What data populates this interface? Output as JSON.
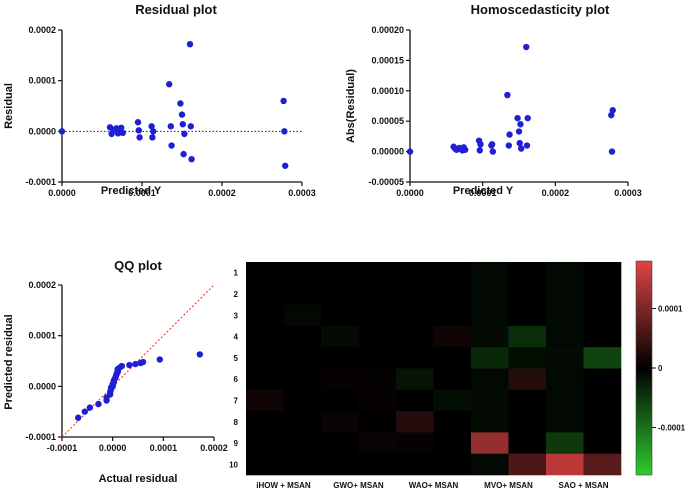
{
  "chart_data": [
    {
      "type": "scatter",
      "title": "Residual plot",
      "xlabel": "Predicted Y",
      "ylabel": "Residual",
      "xlim": [
        0,
        0.0003
      ],
      "ylim": [
        -0.0001,
        0.0002
      ],
      "xticks": [
        "0.0000",
        "0.0001",
        "0.0002",
        "0.0003"
      ],
      "yticks": [
        "-0.0001",
        "0.0000",
        "0.0001",
        "0.0002"
      ],
      "reference_line": "y = 0 (dotted)",
      "color": "#1f1fd6",
      "points": [
        [
          0.0,
          0.0
        ],
        [
          6e-05,
          8e-06
        ],
        [
          6.2e-05,
          -5e-06
        ],
        [
          6.4e-05,
          3e-06
        ],
        [
          6.8e-05,
          6e-06
        ],
        [
          7e-05,
          -4e-06
        ],
        [
          7.2e-05,
          2e-06
        ],
        [
          7.4e-05,
          7e-06
        ],
        [
          7.6e-05,
          -3e-06
        ],
        [
          9.5e-05,
          1.8e-05
        ],
        [
          9.6e-05,
          2e-06
        ],
        [
          9.7e-05,
          -1.2e-05
        ],
        [
          0.000112,
          1e-05
        ],
        [
          0.000113,
          -1.2e-05
        ],
        [
          0.000114,
          0.0
        ],
        [
          0.000134,
          9.3e-05
        ],
        [
          0.000136,
          1e-05
        ],
        [
          0.000137,
          -2.8e-05
        ],
        [
          0.000148,
          5.5e-05
        ],
        [
          0.00015,
          3.3e-05
        ],
        [
          0.000151,
          1.4e-05
        ],
        [
          0.000152,
          -4.5e-05
        ],
        [
          0.000153,
          -5e-06
        ],
        [
          0.00016,
          0.000172
        ],
        [
          0.000161,
          1e-05
        ],
        [
          0.000162,
          -5.5e-05
        ],
        [
          0.000277,
          6e-05
        ],
        [
          0.000278,
          0.0
        ],
        [
          0.000279,
          -6.8e-05
        ]
      ]
    },
    {
      "type": "scatter",
      "title": "Homoscedasticity plot",
      "xlabel": "Predicted Y",
      "ylabel": "Abs(Residual)",
      "xlim": [
        0,
        0.0003
      ],
      "ylim": [
        -5e-05,
        0.0002
      ],
      "xticks": [
        "0.0000",
        "0.0001",
        "0.0002",
        "0.0003"
      ],
      "yticks": [
        "-0.00005",
        "0.00000",
        "0.00005",
        "0.00010",
        "0.00015",
        "0.00020"
      ],
      "color": "#1f1fd6",
      "points": [
        [
          0.0,
          0.0
        ],
        [
          6e-05,
          8e-06
        ],
        [
          6.2e-05,
          5e-06
        ],
        [
          6.4e-05,
          3e-06
        ],
        [
          6.8e-05,
          6e-06
        ],
        [
          7e-05,
          4e-06
        ],
        [
          7.2e-05,
          2e-06
        ],
        [
          7.4e-05,
          7e-06
        ],
        [
          7.6e-05,
          3e-06
        ],
        [
          9.5e-05,
          1.8e-05
        ],
        [
          9.6e-05,
          2e-06
        ],
        [
          9.7e-05,
          1.2e-05
        ],
        [
          0.000112,
          1e-05
        ],
        [
          0.000113,
          1.2e-05
        ],
        [
          0.000114,
          0.0
        ],
        [
          0.000134,
          9.3e-05
        ],
        [
          0.000136,
          1e-05
        ],
        [
          0.000137,
          2.8e-05
        ],
        [
          0.000148,
          5.5e-05
        ],
        [
          0.00015,
          3.3e-05
        ],
        [
          0.000151,
          1.4e-05
        ],
        [
          0.000152,
          4.5e-05
        ],
        [
          0.000153,
          5e-06
        ],
        [
          0.00016,
          0.000172
        ],
        [
          0.000161,
          1e-05
        ],
        [
          0.000162,
          5.5e-05
        ],
        [
          0.000277,
          6e-05
        ],
        [
          0.000278,
          0.0
        ],
        [
          0.000279,
          6.8e-05
        ]
      ]
    },
    {
      "type": "scatter",
      "title": "QQ plot",
      "xlabel": "Actual residual",
      "ylabel": "Predicted residual",
      "xlim": [
        -0.0001,
        0.0002
      ],
      "ylim": [
        -0.0001,
        0.0002
      ],
      "xticks": [
        "-0.0001",
        "0.0000",
        "0.0001",
        "0.0002"
      ],
      "yticks": [
        "-0.0001",
        "0.0000",
        "0.0001",
        "0.0002"
      ],
      "reference_line": "y = x (dashed red)",
      "color": "#1f1fd6",
      "points": [
        [
          -6.8e-05,
          -6.2e-05
        ],
        [
          -5.5e-05,
          -5e-05
        ],
        [
          -4.5e-05,
          -4.2e-05
        ],
        [
          -2.8e-05,
          -3.5e-05
        ],
        [
          -1.2e-05,
          -2.8e-05
        ],
        [
          -1.2e-05,
          -2.2e-05
        ],
        [
          -5e-06,
          -1.6e-05
        ],
        [
          -5e-06,
          -1.2e-05
        ],
        [
          -4e-06,
          -8e-06
        ],
        [
          -3e-06,
          -5e-06
        ],
        [
          -3e-06,
          -2e-06
        ],
        [
          0.0,
          0.0
        ],
        [
          0.0,
          2e-06
        ],
        [
          0.0,
          4e-06
        ],
        [
          2e-06,
          7e-06
        ],
        [
          2e-06,
          1e-05
        ],
        [
          3e-06,
          1.3e-05
        ],
        [
          5e-06,
          1.6e-05
        ],
        [
          6e-06,
          1.9e-05
        ],
        [
          7e-06,
          2.2e-05
        ],
        [
          8e-06,
          2.5e-05
        ],
        [
          1e-05,
          2.8e-05
        ],
        [
          1e-05,
          3.1e-05
        ],
        [
          1e-05,
          3.4e-05
        ],
        [
          1.4e-05,
          3.7e-05
        ],
        [
          1.8e-05,
          4e-05
        ],
        [
          3.3e-05,
          4.2e-05
        ],
        [
          4.5e-05,
          4.4e-05
        ],
        [
          5.5e-05,
          4.6e-05
        ],
        [
          6e-05,
          4.8e-05
        ],
        [
          9.3e-05,
          5.3e-05
        ],
        [
          0.000172,
          6.3e-05
        ]
      ]
    },
    {
      "type": "heatmap",
      "title": "",
      "rows": [
        "1",
        "2",
        "3",
        "4",
        "5",
        "6",
        "7",
        "8",
        "9",
        "10"
      ],
      "columns": [
        "iHOW + MSAN",
        "",
        "GWO+ MSAN",
        "",
        "WAO+ MSAN",
        "",
        "MVO+ MSAN",
        "",
        "SAO + MSAN",
        ""
      ],
      "colorbar": {
        "min": -0.00018,
        "max": 0.00018,
        "ticks": [
          "0.0001",
          "0",
          "-0.0001"
        ],
        "tick_values": [
          0.0001,
          0,
          -0.0001
        ],
        "colors": [
          "#2ecc2e",
          "#000000",
          "#e04545"
        ]
      },
      "values": [
        [
          0,
          0,
          0,
          0,
          0,
          0,
          -8e-06,
          0,
          -8e-06,
          0
        ],
        [
          0,
          0,
          0,
          0,
          0,
          0,
          -8e-06,
          0,
          -8e-06,
          0
        ],
        [
          0,
          -8e-06,
          0,
          0,
          0,
          0,
          -8e-06,
          0,
          -8e-06,
          0
        ],
        [
          0,
          0,
          -1e-05,
          0,
          0,
          1.2e-05,
          -1e-05,
          -4e-05,
          -8e-06,
          0
        ],
        [
          0,
          0,
          0,
          0,
          0,
          0,
          -3.5e-05,
          -1.2e-05,
          -1e-05,
          -6e-05
        ],
        [
          0,
          0,
          5e-06,
          4e-06,
          -1.8e-05,
          0,
          -8e-06,
          3e-05,
          -8e-06,
          0
        ],
        [
          1.2e-05,
          0,
          0,
          5e-06,
          0,
          -1.2e-05,
          -1e-05,
          0,
          -8e-06,
          0
        ],
        [
          0,
          0,
          8e-06,
          0,
          3e-05,
          0,
          -1e-05,
          0,
          -8e-06,
          0
        ],
        [
          0,
          0,
          0,
          8e-06,
          6e-06,
          0,
          0.00012,
          0,
          -5e-05,
          0
        ],
        [
          0,
          0,
          0,
          0,
          0,
          0,
          -8e-06,
          6e-05,
          0.00015,
          7e-05
        ]
      ]
    }
  ]
}
